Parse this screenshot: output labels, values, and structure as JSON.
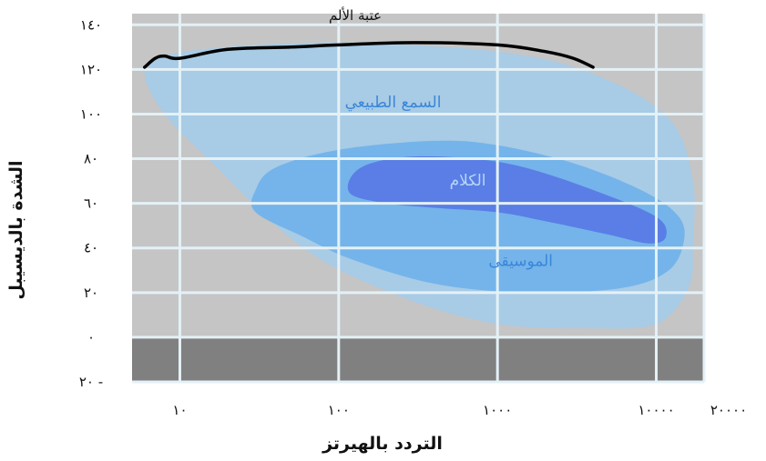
{
  "chart_data": {
    "type": "area",
    "xlabel": "التردد بالهيرتز",
    "ylabel": "الشدة بالديسيبل",
    "x_scale": "log",
    "xlim": [
      5,
      20000
    ],
    "ylim": [
      -20,
      145
    ],
    "x_ticks": [
      {
        "value": 10,
        "label": "١٠"
      },
      {
        "value": 100,
        "label": "١٠٠"
      },
      {
        "value": 1000,
        "label": "١٠٠٠"
      },
      {
        "value": 10000,
        "label": "١٠٠٠٠"
      },
      {
        "value": 20000,
        "label": "٢٠٠٠٠"
      }
    ],
    "y_ticks": [
      {
        "value": 140,
        "label": "١٤٠"
      },
      {
        "value": 120,
        "label": "١٢٠"
      },
      {
        "value": 100,
        "label": "١٠٠"
      },
      {
        "value": 80,
        "label": "٨٠"
      },
      {
        "value": 60,
        "label": "٦٠"
      },
      {
        "value": 40,
        "label": "٤٠"
      },
      {
        "value": 20,
        "label": "٢٠"
      },
      {
        "value": 0,
        "label": "٠"
      },
      {
        "value": -20,
        "label": "٢٠ -"
      }
    ],
    "grid": true,
    "colors": {
      "background": "#c5c5c5",
      "below_zero": "#808080",
      "grid": "#e4f1f6",
      "hearing": "#a8cbe6",
      "music": "#74b4ea",
      "speech": "#5a7ee6",
      "pain": "#000000",
      "region_label": "#3a86d8"
    },
    "regions": [
      {
        "name": "hearing",
        "label": "السمع الطبيعي",
        "label_at": [
          220,
          103
        ],
        "polygon": [
          [
            6,
            118
          ],
          [
            8,
            126
          ],
          [
            20,
            130
          ],
          [
            100,
            132
          ],
          [
            1000,
            128
          ],
          [
            4000,
            118
          ],
          [
            12000,
            98
          ],
          [
            17000,
            70
          ],
          [
            17000,
            40
          ],
          [
            16500,
            25
          ],
          [
            13000,
            12
          ],
          [
            9000,
            5
          ],
          [
            4000,
            4
          ],
          [
            1000,
            6
          ],
          [
            250,
            18
          ],
          [
            60,
            40
          ],
          [
            15,
            80
          ],
          [
            8,
            100
          ]
        ]
      },
      {
        "name": "music",
        "label": "الموسيقى",
        "label_at": [
          1400,
          32
        ],
        "polygon": [
          [
            30,
            66
          ],
          [
            40,
            76
          ],
          [
            100,
            84
          ],
          [
            400,
            88
          ],
          [
            1000,
            86
          ],
          [
            3000,
            78
          ],
          [
            8000,
            66
          ],
          [
            13500,
            55
          ],
          [
            15000,
            44
          ],
          [
            12000,
            30
          ],
          [
            6000,
            22
          ],
          [
            1500,
            20
          ],
          [
            400,
            24
          ],
          [
            120,
            35
          ],
          [
            60,
            45
          ],
          [
            30,
            56
          ]
        ]
      },
      {
        "name": "speech",
        "label": "الكلام",
        "label_at": [
          650,
          68
        ],
        "polygon": [
          [
            120,
            72
          ],
          [
            160,
            78
          ],
          [
            300,
            81
          ],
          [
            700,
            80
          ],
          [
            1500,
            76
          ],
          [
            4000,
            66
          ],
          [
            10000,
            54
          ],
          [
            11500,
            45
          ],
          [
            9000,
            42
          ],
          [
            5000,
            46
          ],
          [
            2000,
            52
          ],
          [
            1000,
            56
          ],
          [
            400,
            58
          ],
          [
            200,
            60
          ],
          [
            120,
            64
          ]
        ]
      }
    ],
    "series": [
      {
        "name": "عتبة الألم",
        "x": [
          6,
          7,
          8,
          10,
          20,
          50,
          100,
          300,
          1000,
          2000,
          3000,
          4000
        ],
        "y": [
          121,
          125,
          126,
          125,
          129,
          130,
          131,
          132,
          131,
          128,
          125,
          121
        ]
      }
    ]
  }
}
